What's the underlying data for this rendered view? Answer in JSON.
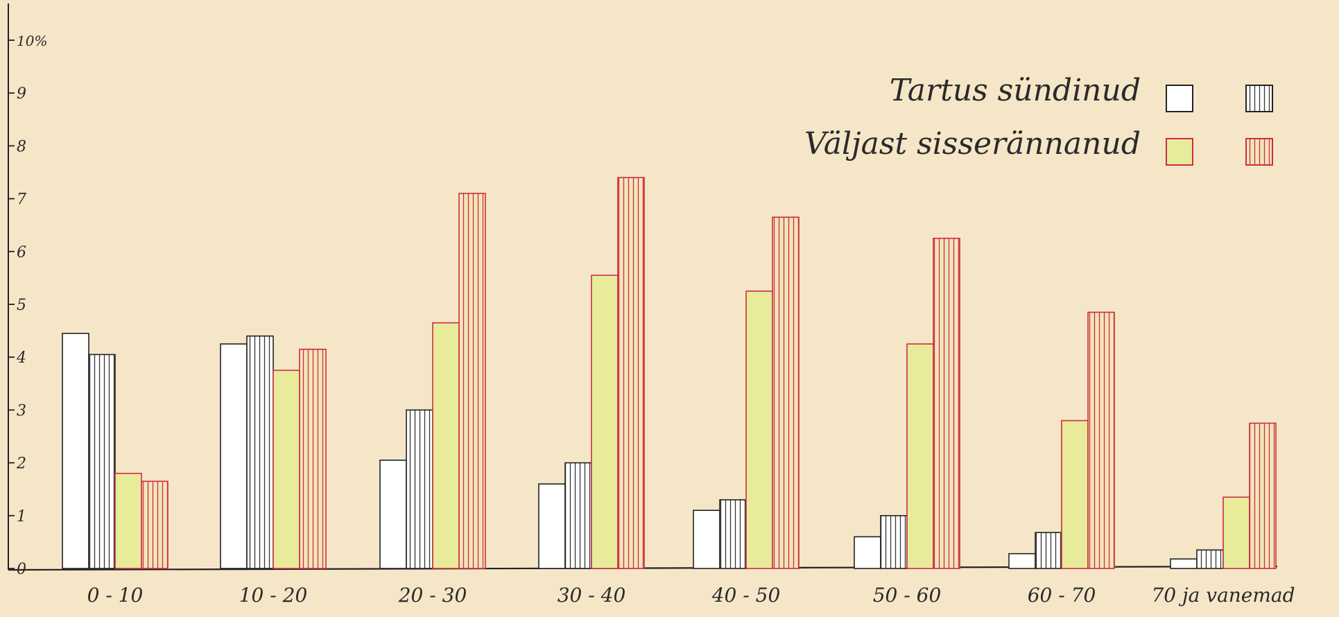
{
  "chart_data": {
    "type": "bar",
    "categories": [
      "0 - 10",
      "10 - 20",
      "20 - 30",
      "30 - 40",
      "40 - 50",
      "50 - 60",
      "60 - 70",
      "70 ja vanemad"
    ],
    "y_unit_label": "10%",
    "y_ticks": [
      "0",
      "1",
      "2",
      "3",
      "4",
      "5",
      "6",
      "7",
      "8",
      "9",
      "10%"
    ],
    "ylim": [
      0,
      10
    ],
    "grid": false,
    "legend": {
      "placement": "top-right",
      "rows": [
        {
          "label": "Tartus sündinud",
          "group": "born"
        },
        {
          "label": "Väljast sisserännanud",
          "group": "immigrated"
        }
      ]
    },
    "series": [
      {
        "group": "born",
        "style": "plain",
        "color": "#ffffff",
        "stroke": "#222222",
        "values": [
          4.45,
          4.25,
          2.05,
          1.6,
          1.1,
          0.6,
          0.28,
          0.18
        ]
      },
      {
        "group": "born",
        "style": "hatched",
        "color": "#ffffff",
        "stroke": "#222222",
        "values": [
          4.05,
          4.4,
          3.0,
          2.0,
          1.3,
          1.0,
          0.68,
          0.35
        ]
      },
      {
        "group": "immigrated",
        "style": "plain",
        "color": "#e8ec9a",
        "stroke": "#d02a45",
        "values": [
          1.8,
          3.75,
          4.65,
          5.55,
          5.25,
          4.25,
          2.8,
          1.35
        ]
      },
      {
        "group": "immigrated",
        "style": "hatched",
        "color": "#f1e6b8",
        "stroke": "#d02a45",
        "values": [
          1.65,
          4.15,
          7.1,
          7.4,
          6.65,
          6.25,
          4.85,
          2.75
        ]
      }
    ]
  }
}
